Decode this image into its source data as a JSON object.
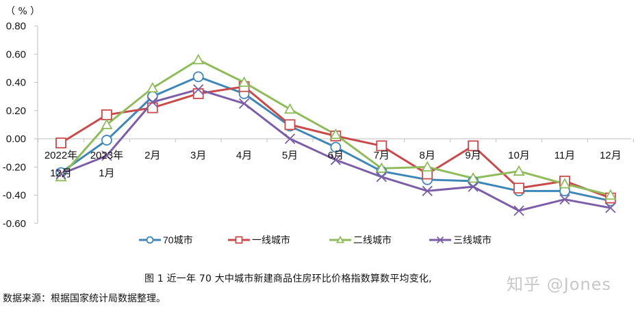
{
  "chart_data": {
    "type": "line",
    "title": "图1 近一年 70 大中城市新建商品住房环比价格指数算数平均变化",
    "xlabel": "",
    "ylabel": "（%）",
    "ylim": [
      -0.6,
      0.8
    ],
    "yticks": [
      "0.80",
      "0.60",
      "0.40",
      "0.20",
      "0.00",
      "-0.20",
      "-0.40",
      "-0.60"
    ],
    "grid": false,
    "legend_position": "bottom",
    "categories": [
      "2022年12月",
      "2023年1月",
      "2月",
      "3月",
      "4月",
      "5月",
      "6月",
      "7月",
      "8月",
      "9月",
      "10月",
      "11月",
      "12月"
    ],
    "category_labels": [
      {
        "line1": "2022年",
        "line2": "12月"
      },
      {
        "line1": "2023年",
        "line2": "1月"
      },
      {
        "line1": "2月",
        "line2": ""
      },
      {
        "line1": "3月",
        "line2": ""
      },
      {
        "line1": "4月",
        "line2": ""
      },
      {
        "line1": "5月",
        "line2": ""
      },
      {
        "line1": "6月",
        "line2": ""
      },
      {
        "line1": "7月",
        "line2": ""
      },
      {
        "line1": "8月",
        "line2": ""
      },
      {
        "line1": "9月",
        "line2": ""
      },
      {
        "line1": "10月",
        "line2": ""
      },
      {
        "line1": "11月",
        "line2": ""
      },
      {
        "line1": "12月",
        "line2": ""
      }
    ],
    "series": [
      {
        "name": "70城市",
        "color": "#3d86b8",
        "marker": "circle",
        "values": [
          -0.24,
          -0.01,
          0.3,
          0.44,
          0.32,
          0.09,
          -0.06,
          -0.23,
          -0.29,
          -0.3,
          -0.37,
          -0.37,
          -0.44
        ]
      },
      {
        "name": "一线城市",
        "color": "#c94a4a",
        "marker": "square",
        "values": [
          -0.03,
          0.17,
          0.22,
          0.32,
          0.37,
          0.1,
          0.02,
          -0.05,
          -0.25,
          -0.05,
          -0.35,
          -0.3,
          -0.42
        ]
      },
      {
        "name": "二线城市",
        "color": "#8fbc5a",
        "marker": "triangle",
        "values": [
          -0.27,
          0.1,
          0.36,
          0.56,
          0.4,
          0.21,
          0.03,
          -0.21,
          -0.2,
          -0.28,
          -0.23,
          -0.32,
          -0.4
        ]
      },
      {
        "name": "三线城市",
        "color": "#7b5ea7",
        "marker": "x",
        "values": [
          -0.25,
          -0.12,
          0.26,
          0.35,
          0.25,
          0.0,
          -0.15,
          -0.27,
          -0.37,
          -0.34,
          -0.51,
          -0.43,
          -0.49
        ]
      }
    ]
  },
  "unit_label": "（ % ）",
  "caption": "图 1    近一年 70 大中城市新建商品住房环比价格指数算数平均变化,",
  "source": "数据来源：根据国家统计局数据整理。",
  "watermark": "知乎 @Jones"
}
